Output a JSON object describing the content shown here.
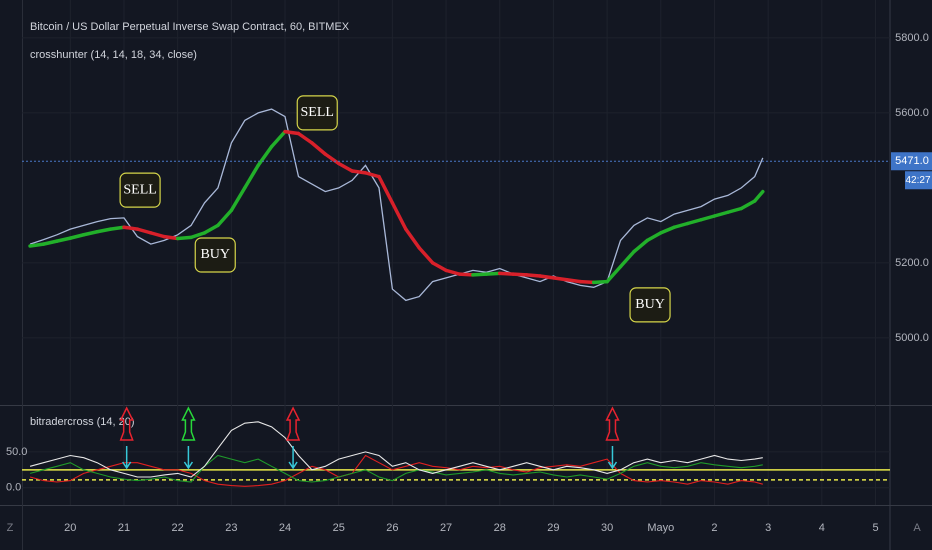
{
  "ui": {
    "left_button": "Z",
    "right_button": "A"
  },
  "chart_data": [
    {
      "type": "line",
      "title": "Bitcoin / US Dollar Perpetual Inverse Swap Contract, 60, BITMEX",
      "subtitle": "crosshunter (14, 14, 18, 34, close)",
      "xlim": [
        19.1,
        35.27
      ],
      "ylim": [
        4821,
        5901
      ],
      "yticks": [
        {
          "value": 5000,
          "label": "5000.0"
        },
        {
          "value": 5200,
          "label": "5200.0"
        },
        {
          "value": 5600,
          "label": "5600.0"
        },
        {
          "value": 5800,
          "label": "5800.0"
        }
      ],
      "last_price": 5471,
      "last_price_label": "5471.0",
      "countdown": "42:27",
      "x": [
        19.25,
        19.5,
        19.75,
        20,
        20.25,
        20.5,
        20.75,
        21,
        21.25,
        21.5,
        21.75,
        22,
        22.25,
        22.5,
        22.75,
        23,
        23.25,
        23.5,
        23.75,
        24,
        24.25,
        24.5,
        24.75,
        25,
        25.25,
        25.5,
        25.75,
        26,
        26.25,
        26.5,
        26.75,
        27,
        27.25,
        27.5,
        27.75,
        28,
        28.25,
        28.5,
        28.75,
        29,
        29.25,
        29.5,
        29.75,
        30,
        30.25,
        30.5,
        30.75,
        31,
        31.25,
        31.5,
        31.75,
        32,
        32.25,
        32.5,
        32.75,
        32.9
      ],
      "series": [
        {
          "color": "#a9b8d8",
          "values": [
            5250,
            5262,
            5275,
            5290,
            5300,
            5310,
            5318,
            5320,
            5270,
            5250,
            5260,
            5275,
            5300,
            5360,
            5400,
            5520,
            5580,
            5600,
            5610,
            5590,
            5430,
            5410,
            5390,
            5400,
            5420,
            5460,
            5400,
            5130,
            5100,
            5110,
            5150,
            5160,
            5170,
            5180,
            5175,
            5185,
            5170,
            5160,
            5150,
            5165,
            5150,
            5140,
            5135,
            5150,
            5260,
            5300,
            5320,
            5310,
            5330,
            5340,
            5350,
            5370,
            5380,
            5400,
            5430,
            5480
          ]
        },
        {
          "up_color": "#22b02a",
          "down_color": "#d8202a",
          "values": [
            5245,
            5250,
            5258,
            5266,
            5275,
            5283,
            5290,
            5295,
            5290,
            5280,
            5270,
            5265,
            5268,
            5280,
            5300,
            5340,
            5400,
            5460,
            5510,
            5550,
            5545,
            5520,
            5490,
            5465,
            5445,
            5440,
            5430,
            5360,
            5290,
            5240,
            5200,
            5180,
            5170,
            5168,
            5170,
            5172,
            5170,
            5168,
            5165,
            5160,
            5155,
            5150,
            5148,
            5150,
            5190,
            5230,
            5260,
            5280,
            5295,
            5305,
            5315,
            5325,
            5335,
            5345,
            5365,
            5390
          ]
        }
      ],
      "annotations": [
        {
          "text": "SELL",
          "x": 21.3,
          "y": 5394
        },
        {
          "text": "BUY",
          "x": 22.7,
          "y": 5221
        },
        {
          "text": "SELL",
          "x": 24.6,
          "y": 5600
        },
        {
          "text": "BUY",
          "x": 30.8,
          "y": 5088
        }
      ]
    },
    {
      "type": "line",
      "title": "bitradercross (14, 20)",
      "xlim": [
        19.1,
        35.27
      ],
      "ylim": [
        -24,
        114
      ],
      "yticks": [
        {
          "value": 0,
          "label": "0.0"
        },
        {
          "value": 50,
          "label": "50.0"
        }
      ],
      "xticks": [
        20,
        21,
        22,
        23,
        24,
        25,
        26,
        27,
        28,
        29,
        30,
        {
          "value": 31,
          "label": "Mayo"
        },
        {
          "value": 32,
          "label": "2"
        },
        {
          "value": 33,
          "label": "3"
        },
        {
          "value": 34,
          "label": "4"
        },
        {
          "value": 35,
          "label": "5"
        }
      ],
      "levels": [
        {
          "value": 25,
          "color": "#e8e84a",
          "dashed": false
        },
        {
          "value": 11,
          "color": "#e8e84a",
          "dashed": true
        }
      ],
      "signals": [
        {
          "x": 21.05,
          "color": "#e8232f"
        },
        {
          "x": 22.2,
          "color": "#28d83a"
        },
        {
          "x": 24.15,
          "color": "#e8232f"
        },
        {
          "x": 30.1,
          "color": "#e8232f"
        }
      ],
      "x": [
        19.25,
        19.5,
        19.75,
        20,
        20.25,
        20.5,
        20.75,
        21,
        21.25,
        21.5,
        21.75,
        22,
        22.25,
        22.5,
        22.75,
        23,
        23.25,
        23.5,
        23.75,
        24,
        24.25,
        24.5,
        24.75,
        25,
        25.25,
        25.5,
        25.75,
        26,
        26.25,
        26.5,
        26.75,
        27,
        27.25,
        27.5,
        27.75,
        28,
        28.25,
        28.5,
        28.75,
        29,
        29.25,
        29.5,
        29.75,
        30,
        30.25,
        30.5,
        30.75,
        31,
        31.25,
        31.5,
        31.75,
        32,
        32.25,
        32.5,
        32.75,
        32.9
      ],
      "series": [
        {
          "color": "#e8e8e8",
          "values": [
            30,
            35,
            40,
            45,
            42,
            35,
            25,
            20,
            15,
            15,
            18,
            20,
            15,
            30,
            55,
            80,
            90,
            92,
            85,
            70,
            45,
            25,
            30,
            40,
            45,
            50,
            45,
            30,
            35,
            25,
            20,
            25,
            30,
            35,
            30,
            25,
            30,
            35,
            30,
            25,
            30,
            28,
            25,
            20,
            25,
            35,
            40,
            35,
            38,
            35,
            40,
            45,
            40,
            38,
            40,
            42
          ]
        },
        {
          "color": "#1f9a2a",
          "values": [
            20,
            25,
            30,
            35,
            25,
            20,
            15,
            12,
            10,
            12,
            15,
            10,
            8,
            30,
            45,
            40,
            35,
            40,
            30,
            20,
            10,
            8,
            10,
            15,
            20,
            25,
            15,
            10,
            20,
            25,
            22,
            18,
            20,
            22,
            25,
            20,
            18,
            20,
            22,
            18,
            15,
            18,
            15,
            12,
            20,
            30,
            35,
            30,
            28,
            30,
            35,
            32,
            30,
            28,
            30,
            32
          ]
        },
        {
          "color": "#e02020",
          "values": [
            15,
            10,
            8,
            10,
            20,
            25,
            30,
            35,
            35,
            30,
            25,
            25,
            20,
            10,
            5,
            3,
            2,
            3,
            5,
            10,
            20,
            30,
            25,
            15,
            20,
            45,
            35,
            25,
            30,
            35,
            30,
            28,
            25,
            30,
            28,
            30,
            25,
            22,
            28,
            30,
            32,
            30,
            35,
            40,
            20,
            10,
            8,
            10,
            8,
            5,
            10,
            8,
            5,
            10,
            8,
            5
          ]
        }
      ]
    }
  ]
}
